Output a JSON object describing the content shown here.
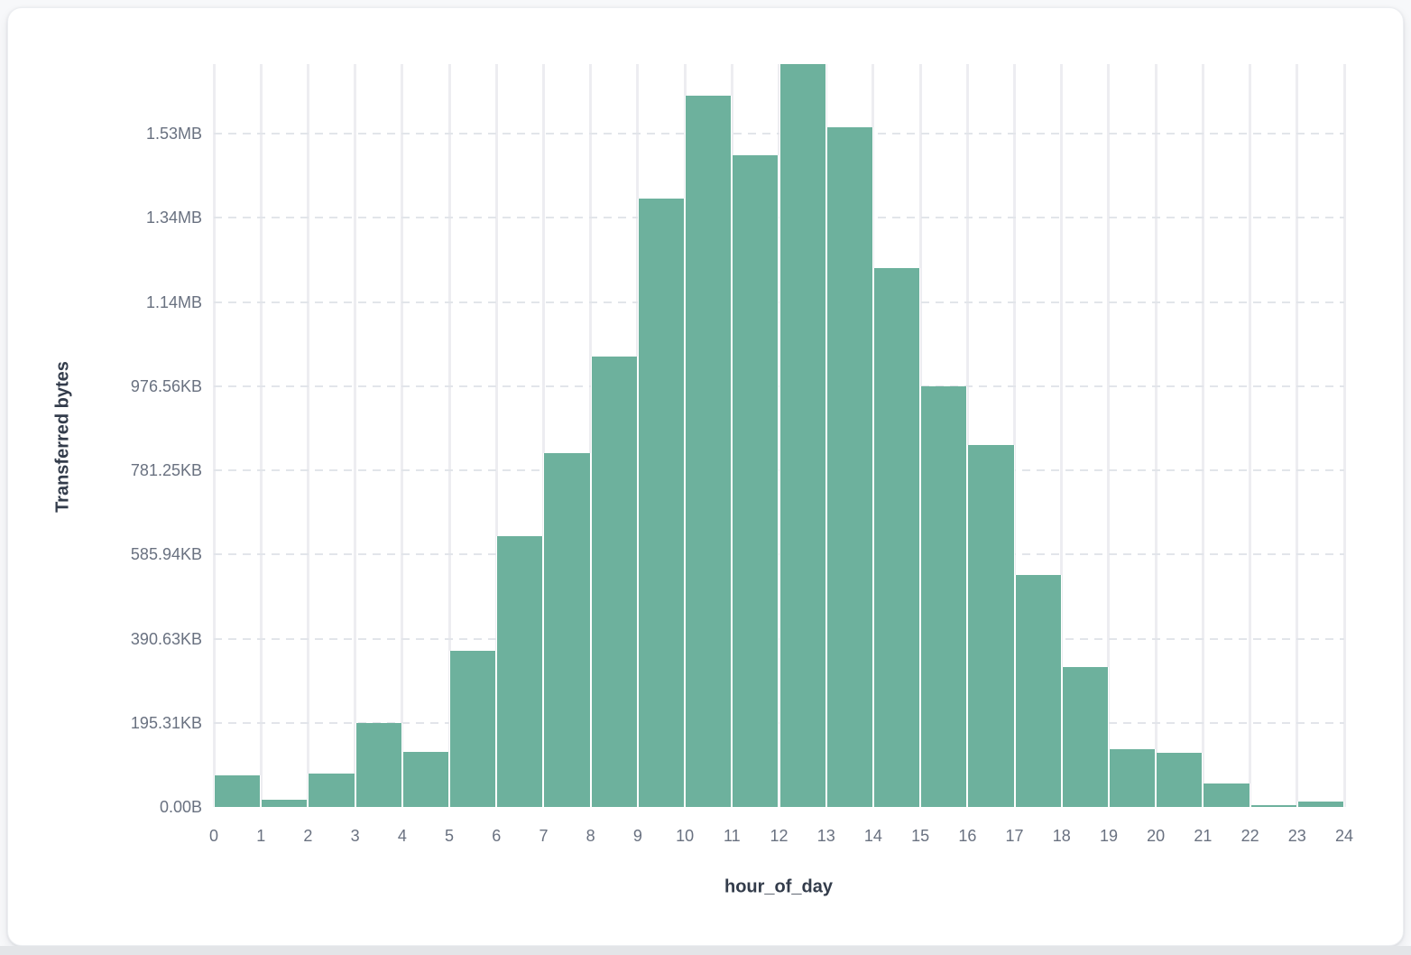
{
  "colors": {
    "page_bg": "#f7f8fa",
    "bottom_strip": "#e3e5e8",
    "card_bg": "#ffffff",
    "card_border": "#eceef1",
    "bar": "#6db19d",
    "tick_label": "#697180",
    "axis_title": "#333c4b",
    "vertical_grid": "#ededf1",
    "horizontal_grid": "#e2e5ea"
  },
  "chart_data": {
    "type": "bar",
    "title": "",
    "xlabel": "hour_of_day",
    "ylabel": "Transferred bytes",
    "categories": [
      0,
      1,
      2,
      3,
      4,
      5,
      6,
      7,
      8,
      9,
      10,
      11,
      12,
      13,
      14,
      15,
      16,
      17,
      18,
      19,
      20,
      21,
      22,
      23
    ],
    "values_bytes": [
      74000,
      18000,
      80000,
      199000,
      131000,
      371000,
      644000,
      840000,
      1071000,
      1445000,
      1690000,
      1548000,
      1765000,
      1615000,
      1281000,
      999000,
      861000,
      551000,
      333000,
      138000,
      129000,
      55000,
      4000,
      12000
    ],
    "x_tick_labels": [
      "0",
      "1",
      "2",
      "3",
      "4",
      "5",
      "6",
      "7",
      "8",
      "9",
      "10",
      "11",
      "12",
      "13",
      "14",
      "15",
      "16",
      "17",
      "18",
      "19",
      "20",
      "21",
      "22",
      "23",
      "24"
    ],
    "y_ticks": [
      {
        "label": "0.00B",
        "bytes": 0
      },
      {
        "label": "195.31KB",
        "bytes": 200000
      },
      {
        "label": "390.63KB",
        "bytes": 400000
      },
      {
        "label": "585.94KB",
        "bytes": 600000
      },
      {
        "label": "781.25KB",
        "bytes": 800000
      },
      {
        "label": "976.56KB",
        "bytes": 1000000
      },
      {
        "label": "1.14MB",
        "bytes": 1200000
      },
      {
        "label": "1.34MB",
        "bytes": 1400000
      },
      {
        "label": "1.53MB",
        "bytes": 1600000
      }
    ],
    "ylim_bytes": [
      0,
      1770000
    ],
    "grid": true,
    "legend": false,
    "bar_color": "#6db19d"
  }
}
